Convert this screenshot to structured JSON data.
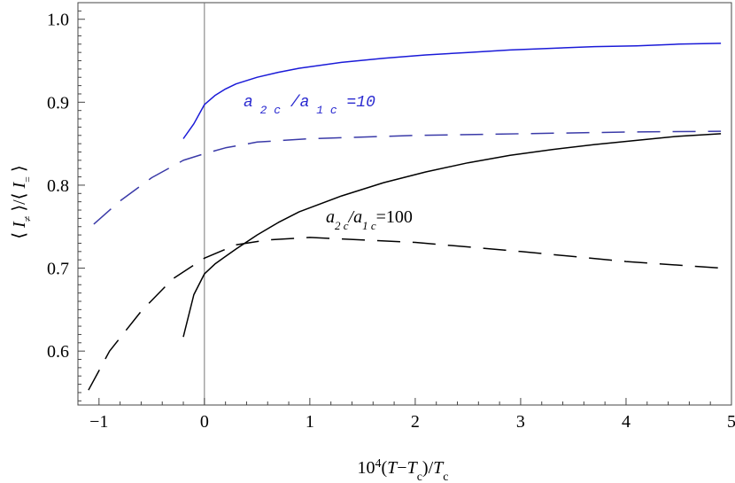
{
  "chart_data": {
    "type": "line",
    "xlabel": "10⁴(T−T_c)/T_c",
    "ylabel": "⟨I₌⟩/⟨I₌⟩",
    "xlim": [
      -1.2,
      5.0
    ],
    "ylim": [
      0.535,
      1.02
    ],
    "x_ticks": [
      -1,
      0,
      1,
      2,
      3,
      4,
      5
    ],
    "y_ticks": [
      0.6,
      0.7,
      0.8,
      0.9,
      1.0
    ],
    "x_tick_labels": [
      "−1",
      "0",
      "1",
      "2",
      "3",
      "4",
      "5"
    ],
    "y_tick_labels": [
      "0.6",
      "0.7",
      "0.8",
      "0.9",
      "1.0"
    ],
    "grid": false,
    "legend": "none",
    "annotations": [
      {
        "text": "a₂ c /a₁ c =10",
        "color": "#2a2ad0"
      },
      {
        "text": "a₂ c/a₁ c=100",
        "color": "#000000"
      }
    ],
    "series": [
      {
        "color": "#1a1ad8",
        "style": "solid",
        "x": [
          -0.2,
          -0.1,
          0.0,
          0.1,
          0.2,
          0.3,
          0.5,
          0.7,
          0.9,
          1.3,
          1.7,
          2.1,
          2.5,
          2.9,
          3.3,
          3.7,
          4.1,
          4.5,
          4.9
        ],
        "y": [
          0.856,
          0.874,
          0.897,
          0.908,
          0.916,
          0.922,
          0.93,
          0.936,
          0.941,
          0.948,
          0.953,
          0.957,
          0.96,
          0.963,
          0.965,
          0.967,
          0.968,
          0.97,
          0.971
        ]
      },
      {
        "color": "#3a3aa8",
        "style": "dashed",
        "x": [
          -1.05,
          -0.8,
          -0.5,
          -0.2,
          0.0,
          0.2,
          0.5,
          1.0,
          2.0,
          3.0,
          4.0,
          4.9
        ],
        "y": [
          0.753,
          0.781,
          0.809,
          0.83,
          0.838,
          0.845,
          0.852,
          0.856,
          0.86,
          0.862,
          0.864,
          0.865
        ]
      },
      {
        "color": "#000000",
        "style": "solid",
        "x": [
          -0.2,
          -0.1,
          0.0,
          0.1,
          0.2,
          0.3,
          0.5,
          0.7,
          0.9,
          1.3,
          1.7,
          2.1,
          2.5,
          2.9,
          3.3,
          3.7,
          4.1,
          4.5,
          4.9
        ],
        "y": [
          0.617,
          0.668,
          0.693,
          0.705,
          0.714,
          0.723,
          0.74,
          0.755,
          0.768,
          0.787,
          0.803,
          0.816,
          0.827,
          0.836,
          0.843,
          0.849,
          0.854,
          0.859,
          0.862
        ]
      },
      {
        "color": "#000000",
        "style": "dashed",
        "x": [
          -1.1,
          -0.9,
          -0.6,
          -0.3,
          0.0,
          0.3,
          0.6,
          1.0,
          2.0,
          3.0,
          4.0,
          4.9
        ],
        "y": [
          0.553,
          0.6,
          0.648,
          0.687,
          0.712,
          0.728,
          0.734,
          0.737,
          0.731,
          0.72,
          0.708,
          0.7
        ]
      }
    ]
  }
}
